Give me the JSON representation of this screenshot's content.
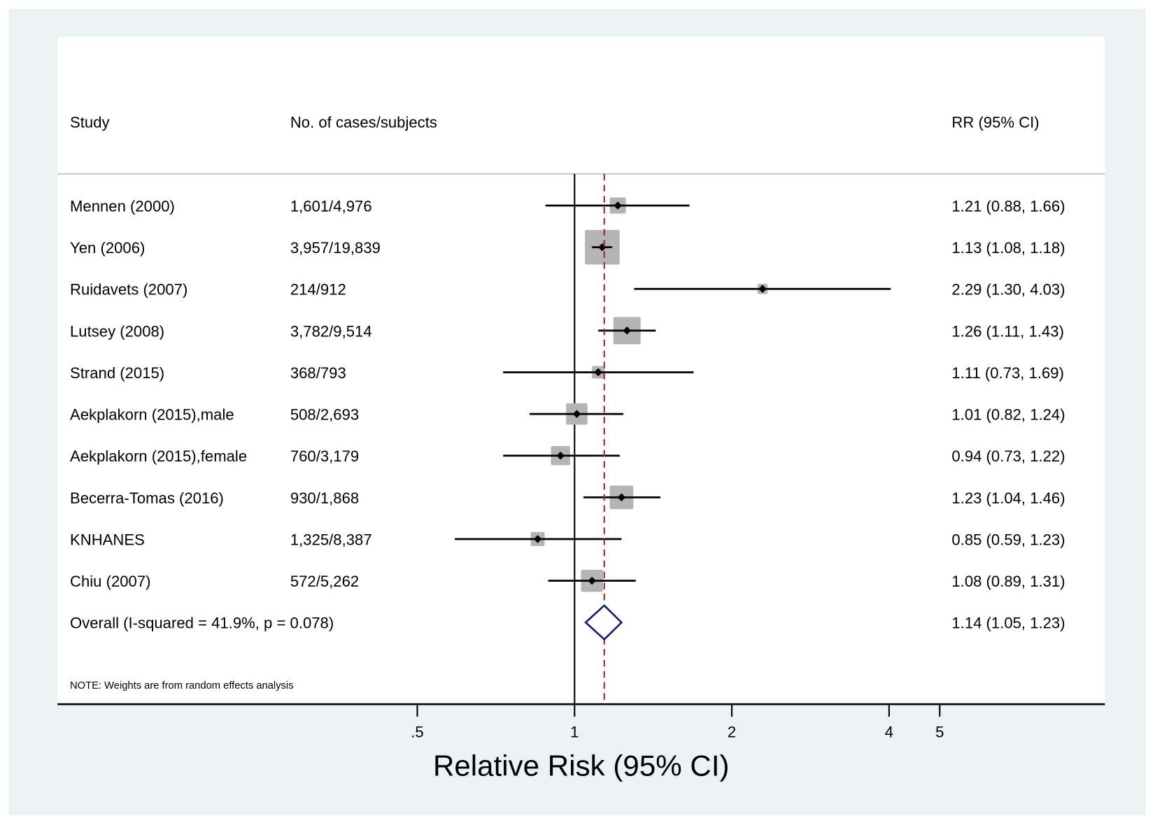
{
  "chart_data": {
    "type": "forest",
    "xlabel": "Relative Risk (95% CI)",
    "x_scale": "log",
    "xlim": [
      0.5,
      5
    ],
    "x_ticks": [
      0.5,
      1,
      2,
      4,
      5
    ],
    "x_tick_labels": [
      ".5",
      "1",
      "2",
      "4",
      "5"
    ],
    "null_line": 1,
    "overall_line": 1.14,
    "headers": {
      "study": "Study",
      "cases": "No. of cases/subjects",
      "rr": "RR (95% CI)"
    },
    "studies": [
      {
        "name": "Mennen (2000)",
        "cases": "1,601/4,976",
        "rr": 1.21,
        "lo": 0.88,
        "hi": 1.66,
        "label": "1.21 (0.88, 1.66)",
        "weight": 5.8
      },
      {
        "name": "Yen (2006)",
        "cases": "3,957/19,839",
        "rr": 1.13,
        "lo": 1.08,
        "hi": 1.18,
        "label": "1.13 (1.08, 1.18)",
        "weight": 26.5
      },
      {
        "name": "Ruidavets (2007)",
        "cases": "214/912",
        "rr": 2.29,
        "lo": 1.3,
        "hi": 4.03,
        "label": "2.29 (1.30, 4.03)",
        "weight": 2.3
      },
      {
        "name": "Lutsey (2008)",
        "cases": "3,782/9,514",
        "rr": 1.26,
        "lo": 1.11,
        "hi": 1.43,
        "label": "1.26 (1.11, 1.43)",
        "weight": 16.4
      },
      {
        "name": "Strand (2015)",
        "cases": "368/793",
        "rr": 1.11,
        "lo": 0.73,
        "hi": 1.69,
        "label": "1.11 (0.73, 1.69)",
        "weight": 3.5
      },
      {
        "name": "Aekplakorn (2015),male",
        "cases": "508/2,693",
        "rr": 1.01,
        "lo": 0.82,
        "hi": 1.24,
        "label": "1.01 (0.82, 1.24)",
        "weight": 10.1
      },
      {
        "name": "Aekplakorn (2015),female",
        "cases": "760/3,179",
        "rr": 0.94,
        "lo": 0.73,
        "hi": 1.22,
        "label": "0.94 (0.73, 1.22)",
        "weight": 8.1
      },
      {
        "name": "Becerra-Tomas (2016)",
        "cases": "930/1,868",
        "rr": 1.23,
        "lo": 1.04,
        "hi": 1.46,
        "label": "1.23 (1.04, 1.46)",
        "weight": 12.3
      },
      {
        "name": "KNHANES",
        "cases": "1,325/8,387",
        "rr": 0.85,
        "lo": 0.59,
        "hi": 1.23,
        "label": "0.85 (0.59, 1.23)",
        "weight": 4.3
      },
      {
        "name": "Chiu (2007)",
        "cases": "572/5,262",
        "rr": 1.08,
        "lo": 0.89,
        "hi": 1.31,
        "label": "1.08 (0.89, 1.31)",
        "weight": 10.8
      }
    ],
    "overall": {
      "name": "Overall  (I-squared = 41.9%, p = 0.078)",
      "rr": 1.14,
      "lo": 1.05,
      "hi": 1.23,
      "label": "1.14 (1.05, 1.23)"
    },
    "note": "NOTE: Weights are from random effects analysis",
    "colors": {
      "box": "#b4b4b4",
      "diamond": "#1a1a6e",
      "overall_line": "#a0282d",
      "outer_bg": "#eaf2f3"
    }
  }
}
